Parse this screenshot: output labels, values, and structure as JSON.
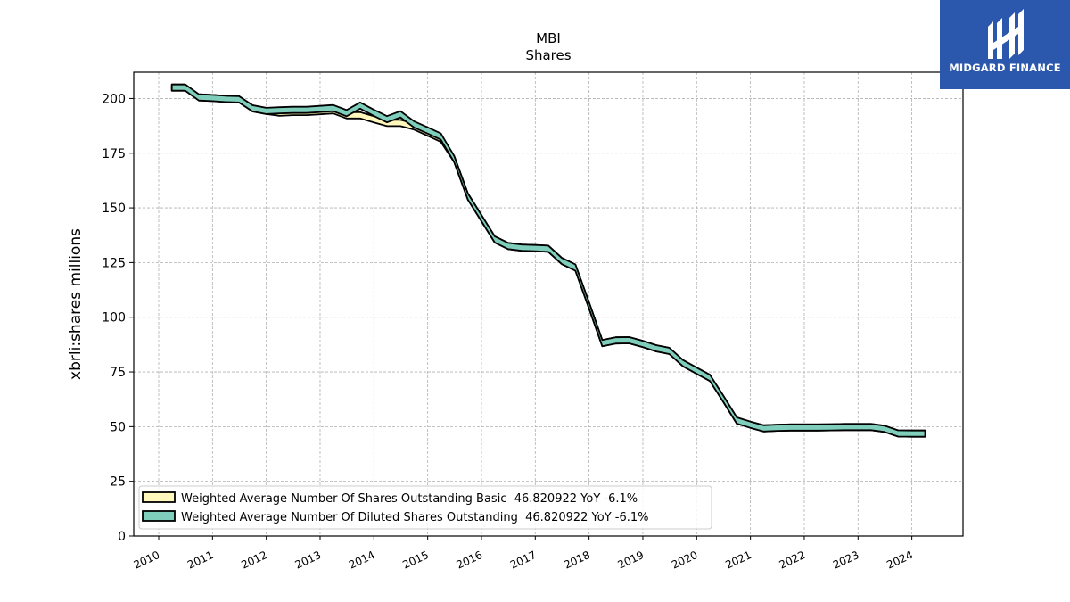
{
  "chart_data": {
    "type": "area",
    "title": "MBI",
    "subtitle": "Shares",
    "xlabel": "",
    "ylabel": "xbrli:shares millions",
    "ylim": [
      0,
      212
    ],
    "yticks": [
      0,
      25,
      50,
      75,
      100,
      125,
      150,
      175,
      200
    ],
    "xticks": [
      "2010",
      "2011",
      "2012",
      "2013",
      "2014",
      "2015",
      "2016",
      "2017",
      "2018",
      "2019",
      "2020",
      "2021",
      "2022",
      "2023",
      "2024"
    ],
    "grid": true,
    "legend_position": "lower-left",
    "series": [
      {
        "name": "Weighted Average Number Of Shares Outstanding Basic  46.820922 YoY -6.1%",
        "color": "#fff7bc",
        "x": [
          "2010-03-31",
          "2010-06-30",
          "2010-09-30",
          "2010-12-31",
          "2011-03-31",
          "2011-06-30",
          "2011-09-30",
          "2011-12-31",
          "2012-03-31",
          "2012-06-30",
          "2012-09-30",
          "2012-12-31",
          "2013-03-31",
          "2013-06-30",
          "2013-09-30",
          "2013-12-31",
          "2014-03-31",
          "2014-06-30",
          "2014-09-30",
          "2014-12-31",
          "2015-03-31",
          "2015-06-30",
          "2015-09-30",
          "2015-12-31",
          "2016-03-31",
          "2016-06-30",
          "2016-09-30",
          "2016-12-31",
          "2017-03-31",
          "2017-06-30",
          "2017-09-30",
          "2017-12-31",
          "2018-03-31",
          "2018-06-30",
          "2018-09-30",
          "2018-12-31",
          "2019-03-31",
          "2019-06-30",
          "2019-09-30",
          "2019-12-31",
          "2020-03-31",
          "2020-06-30",
          "2020-09-30",
          "2020-12-31",
          "2021-03-31",
          "2021-06-30",
          "2021-09-30",
          "2021-12-31",
          "2022-03-31",
          "2022-06-30",
          "2022-09-30",
          "2022-12-31",
          "2023-03-31",
          "2023-06-30",
          "2023-09-30",
          "2023-12-31",
          "2024-03-31"
        ],
        "values": [
          205,
          205,
          200.5,
          200.2,
          199.8,
          199.6,
          195.5,
          194.3,
          193.5,
          193.8,
          193.8,
          194.2,
          194.6,
          192.3,
          192.3,
          190.5,
          188.8,
          188.8,
          187.2,
          184.4,
          181.6,
          172.3,
          155.3,
          145.4,
          135.6,
          132.6,
          131.8,
          131.6,
          131.3,
          125.7,
          122.7,
          105.5,
          88.2,
          89.4,
          89.5,
          87.8,
          85.8,
          84.6,
          79,
          75.6,
          72.3,
          62.8,
          52.8,
          50.9,
          49.2,
          49.5,
          49.6,
          49.6,
          49.6,
          49.7,
          49.8,
          49.8,
          49.8,
          49,
          46.9,
          46.8,
          46.8
        ]
      },
      {
        "name": "Weighted Average Number Of Diluted Shares Outstanding  46.820922 YoY -6.1%",
        "color": "#7fcdbb",
        "x": [
          "2010-03-31",
          "2010-06-30",
          "2010-09-30",
          "2010-12-31",
          "2011-03-31",
          "2011-06-30",
          "2011-09-30",
          "2011-12-31",
          "2012-03-31",
          "2012-06-30",
          "2012-09-30",
          "2012-12-31",
          "2013-03-31",
          "2013-06-30",
          "2013-09-30",
          "2013-12-31",
          "2014-03-31",
          "2014-06-30",
          "2014-09-30",
          "2014-12-31",
          "2015-03-31",
          "2015-06-30",
          "2015-09-30",
          "2015-12-31",
          "2016-03-31",
          "2016-06-30",
          "2016-09-30",
          "2016-12-31",
          "2017-03-31",
          "2017-06-30",
          "2017-09-30",
          "2017-12-31",
          "2018-03-31",
          "2018-06-30",
          "2018-09-30",
          "2018-12-31",
          "2019-03-31",
          "2019-06-30",
          "2019-09-30",
          "2019-12-31",
          "2020-03-31",
          "2020-06-30",
          "2020-09-30",
          "2020-12-31",
          "2021-03-31",
          "2021-06-30",
          "2021-09-30",
          "2021-12-31",
          "2022-03-31",
          "2022-06-30",
          "2022-09-30",
          "2022-12-31",
          "2023-03-31",
          "2023-06-30",
          "2023-09-30",
          "2023-12-31",
          "2024-03-31"
        ],
        "values": [
          205,
          205,
          200.5,
          200.2,
          199.8,
          199.6,
          195.5,
          194.3,
          194.6,
          194.8,
          194.8,
          195.2,
          195.6,
          193.3,
          196.8,
          193.5,
          190.5,
          192.8,
          188.2,
          185.4,
          182.6,
          172.3,
          155.3,
          145.4,
          135.6,
          132.6,
          131.8,
          131.6,
          131.3,
          125.7,
          122.7,
          105.5,
          88.2,
          89.4,
          89.5,
          87.8,
          85.8,
          84.6,
          79,
          75.6,
          72.3,
          62.8,
          52.8,
          50.9,
          49.2,
          49.5,
          49.6,
          49.6,
          49.6,
          49.7,
          49.8,
          49.8,
          49.8,
          49,
          46.9,
          46.8,
          46.8
        ]
      }
    ]
  },
  "logo": {
    "text": "MIDGARD FINANCE"
  }
}
